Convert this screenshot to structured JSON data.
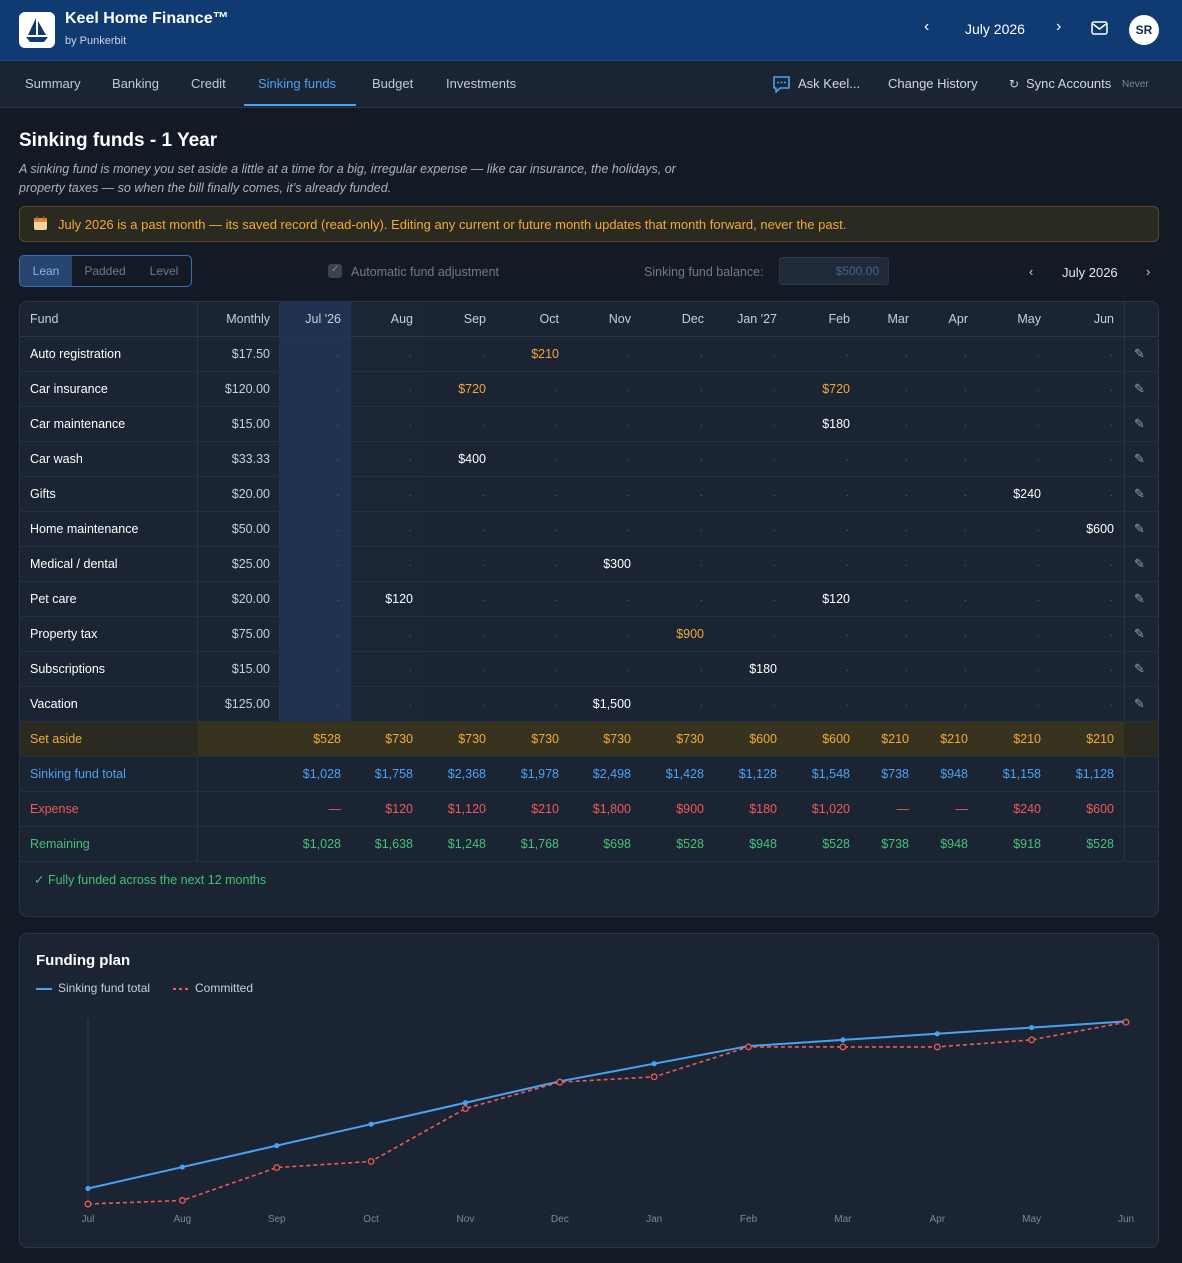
{
  "header": {
    "app_title": "Keel Home Finance™",
    "app_subtitle": "by Punkerbit",
    "month_label": "July 2026",
    "prev_glyph": "‹",
    "next_glyph": "›",
    "avatar_initials": "SR"
  },
  "nav": {
    "tabs": [
      "Summary",
      "Banking",
      "Credit",
      "Sinking funds",
      "Budget",
      "Investments"
    ],
    "active_tab": "Sinking funds",
    "ask": "Ask Keel...",
    "history": "Change History",
    "sync": "Sync Accounts",
    "sync_status": "Never"
  },
  "page": {
    "title": "Sinking funds - 1 Year",
    "description": "A sinking fund is money you set aside a little at a time for a big, irregular expense — like car insurance, the holidays, or property taxes — so when the bill finally comes, it’s already funded.",
    "banner": "July 2026 is a past month — its saved record (read-only). Editing any current or future month updates that month forward, never the past."
  },
  "controls": {
    "modes": [
      "Lean",
      "Padded",
      "Level"
    ],
    "active_mode": "Lean",
    "auto_adjust_label": "Automatic fund adjustment",
    "auto_adjust_checked": true,
    "balance_label": "Sinking fund balance:",
    "balance_value": "$500.00",
    "table_month": "July 2026"
  },
  "table": {
    "fund_header": "Fund",
    "monthly_header": "Monthly",
    "months": [
      "Jul '26",
      "Aug",
      "Sep",
      "Oct",
      "Nov",
      "Dec",
      "Jan '27",
      "Feb",
      "Mar",
      "Apr",
      "May",
      "Jun"
    ],
    "empty_glyph": "·",
    "edit_glyph": "✎",
    "rows": [
      {
        "name": "Auto registration",
        "monthly": "$17.50",
        "cells": [
          "",
          "",
          "",
          "$210",
          "",
          "",
          "",
          "",
          "",
          "",
          "",
          ""
        ],
        "accent": [
          false,
          false,
          false,
          true,
          false,
          false,
          false,
          false,
          false,
          false,
          false,
          false
        ]
      },
      {
        "name": "Car insurance",
        "monthly": "$120.00",
        "cells": [
          "",
          "",
          "$720",
          "",
          "",
          "",
          "",
          "$720",
          "",
          "",
          "",
          ""
        ],
        "accent": [
          false,
          false,
          true,
          false,
          false,
          false,
          false,
          true,
          false,
          false,
          false,
          false
        ]
      },
      {
        "name": "Car maintenance",
        "monthly": "$15.00",
        "cells": [
          "",
          "",
          "",
          "",
          "",
          "",
          "",
          "$180",
          "",
          "",
          "",
          ""
        ],
        "accent": [
          false,
          false,
          false,
          false,
          false,
          false,
          false,
          false,
          false,
          false,
          false,
          false
        ]
      },
      {
        "name": "Car wash",
        "monthly": "$33.33",
        "cells": [
          "",
          "",
          "$400",
          "",
          "",
          "",
          "",
          "",
          "",
          "",
          "",
          ""
        ],
        "accent": [
          false,
          false,
          false,
          false,
          false,
          false,
          false,
          false,
          false,
          false,
          false,
          false
        ]
      },
      {
        "name": "Gifts",
        "monthly": "$20.00",
        "cells": [
          "",
          "",
          "",
          "",
          "",
          "",
          "",
          "",
          "",
          "",
          "$240",
          ""
        ],
        "accent": [
          false,
          false,
          false,
          false,
          false,
          false,
          false,
          false,
          false,
          false,
          false,
          false
        ]
      },
      {
        "name": "Home maintenance",
        "monthly": "$50.00",
        "cells": [
          "",
          "",
          "",
          "",
          "",
          "",
          "",
          "",
          "",
          "",
          "",
          "$600"
        ],
        "accent": [
          false,
          false,
          false,
          false,
          false,
          false,
          false,
          false,
          false,
          false,
          false,
          false
        ]
      },
      {
        "name": "Medical / dental",
        "monthly": "$25.00",
        "cells": [
          "",
          "",
          "",
          "",
          "$300",
          "",
          "",
          "",
          "",
          "",
          "",
          ""
        ],
        "accent": [
          false,
          false,
          false,
          false,
          false,
          false,
          false,
          false,
          false,
          false,
          false,
          false
        ]
      },
      {
        "name": "Pet care",
        "monthly": "$20.00",
        "cells": [
          "",
          "$120",
          "",
          "",
          "",
          "",
          "",
          "$120",
          "",
          "",
          "",
          ""
        ],
        "accent": [
          false,
          false,
          false,
          false,
          false,
          false,
          false,
          false,
          false,
          false,
          false,
          false
        ]
      },
      {
        "name": "Property tax",
        "monthly": "$75.00",
        "cells": [
          "",
          "",
          "",
          "",
          "",
          "$900",
          "",
          "",
          "",
          "",
          "",
          ""
        ],
        "accent": [
          false,
          false,
          false,
          false,
          false,
          true,
          false,
          false,
          false,
          false,
          false,
          false
        ]
      },
      {
        "name": "Subscriptions",
        "monthly": "$15.00",
        "cells": [
          "",
          "",
          "",
          "",
          "",
          "",
          "$180",
          "",
          "",
          "",
          "",
          ""
        ],
        "accent": [
          false,
          false,
          false,
          false,
          false,
          false,
          false,
          false,
          false,
          false,
          false,
          false
        ]
      },
      {
        "name": "Vacation",
        "monthly": "$125.00",
        "cells": [
          "",
          "",
          "",
          "",
          "$1,500",
          "",
          "",
          "",
          "",
          "",
          "",
          ""
        ],
        "accent": [
          false,
          false,
          false,
          false,
          false,
          false,
          false,
          false,
          false,
          false,
          false,
          false
        ]
      }
    ],
    "summary": [
      {
        "label": "Set aside",
        "color": "#f2a93b",
        "values": [
          "$528",
          "$730",
          "$730",
          "$730",
          "$730",
          "$730",
          "$600",
          "$600",
          "$210",
          "$210",
          "$210",
          "$210"
        ]
      },
      {
        "label": "Sinking fund total",
        "color": "#4aa3f2",
        "values": [
          "$1,028",
          "$1,758",
          "$2,368",
          "$1,978",
          "$2,498",
          "$1,428",
          "$1,128",
          "$1,548",
          "$738",
          "$948",
          "$1,158",
          "$1,128"
        ]
      },
      {
        "label": "Expense",
        "color": "#f05a5a",
        "values": [
          "—",
          "$120",
          "$1,120",
          "$210",
          "$1,800",
          "$900",
          "$180",
          "$1,020",
          "—",
          "—",
          "$240",
          "$600"
        ]
      },
      {
        "label": "Remaining",
        "color": "#46c07a",
        "values": [
          "$1,028",
          "$1,638",
          "$1,248",
          "$1,768",
          "$698",
          "$528",
          "$948",
          "$528",
          "$738",
          "$948",
          "$918",
          "$528"
        ]
      }
    ],
    "funded_note": "✓ Fully funded across the next 12 months"
  },
  "chart_data": {
    "type": "line",
    "title": "Funding plan",
    "categories": [
      "Jul",
      "Aug",
      "Sep",
      "Oct",
      "Nov",
      "Dec",
      "Jan",
      "Feb",
      "Mar",
      "Apr",
      "May",
      "Jun"
    ],
    "series": [
      {
        "name": "Sinking fund total",
        "color": "#4aa3f2",
        "values": [
          528,
          1258,
          1988,
          2718,
          3448,
          4178,
          4778,
          5378,
          5588,
          5798,
          6008,
          6218
        ]
      },
      {
        "name": "Committed",
        "color": "#f05a5a",
        "values": [
          0,
          120,
          1240,
          1450,
          3250,
          4150,
          4330,
          5350,
          5350,
          5350,
          5590,
          6190
        ]
      }
    ],
    "ylim": [
      0,
      6300
    ],
    "grid": false,
    "legend": "top-left"
  }
}
